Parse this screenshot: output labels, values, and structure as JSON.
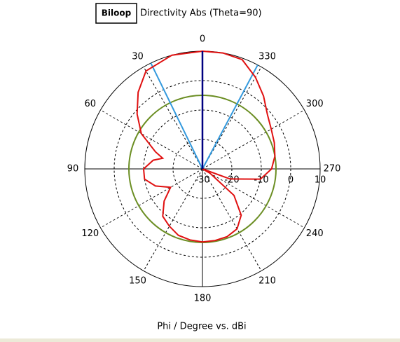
{
  "chart_data": {
    "type": "polar",
    "title": "Directivity Abs (Theta=90)",
    "x_label": "Phi / Degree vs. dBi",
    "x": [
      0,
      15,
      30,
      40,
      50,
      60,
      70,
      75,
      80,
      90,
      100,
      110,
      120,
      130,
      140,
      150,
      160,
      170,
      180,
      190,
      200,
      210,
      220,
      230,
      240,
      245,
      250,
      260,
      270,
      280,
      290,
      300,
      310,
      320,
      330,
      340,
      350
    ],
    "series": [
      {
        "name": "Biloop",
        "color": "#e01010",
        "values": [
          10,
          10,
          8.4,
          4,
          -1,
          -6,
          -13,
          -16,
          -13,
          -10,
          -10,
          -13,
          -17.5,
          -13,
          -9,
          -7.5,
          -6,
          -5.5,
          -5.2,
          -5.3,
          -5.5,
          -6.5,
          -9.5,
          -16,
          -27,
          -30,
          -20,
          -10,
          -6.5,
          -5,
          -4,
          -3,
          -1.2,
          2.3,
          6,
          9.5,
          10
        ]
      }
    ],
    "angle_ticks": [
      0,
      30,
      60,
      90,
      120,
      150,
      180,
      210,
      240,
      270,
      300,
      330
    ],
    "rlim": [
      -30,
      10
    ],
    "rticks": [
      -30,
      -20,
      -10,
      0,
      10
    ],
    "reference_level": -5,
    "reference_color": "#6b8e23",
    "main_direction": 0,
    "main_direction_color": "#000080",
    "beamwidth_angles": [
      26,
      332
    ],
    "beamwidth_color": "#3399dd"
  }
}
